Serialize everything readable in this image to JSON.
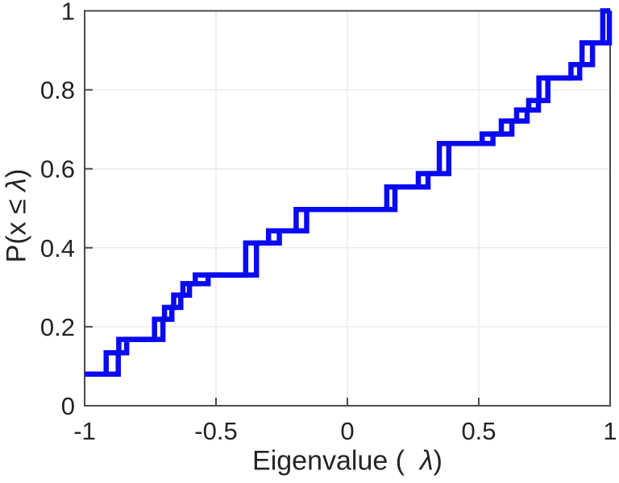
{
  "chart_data": {
    "type": "step",
    "description": "Empirical cumulative distribution of eigenvalues, two overlaid step curves",
    "xlabel": {
      "prefix": "Eigenvalue (  ",
      "symbol": "λ",
      "suffix": ")"
    },
    "ylabel": {
      "prefix": "P(x ≤ ",
      "symbol": "λ",
      "suffix": ")"
    },
    "xlim": [
      -1,
      1
    ],
    "ylim": [
      0,
      1
    ],
    "x_end": 1,
    "x_ticks": [
      {
        "value": -1,
        "label": "-1"
      },
      {
        "value": -0.5,
        "label": "-0.5"
      },
      {
        "value": 0,
        "label": "0"
      },
      {
        "value": 0.5,
        "label": "0.5"
      },
      {
        "value": 1,
        "label": "1"
      }
    ],
    "y_ticks": [
      {
        "value": 0,
        "label": "0"
      },
      {
        "value": 0.2,
        "label": "0.2"
      },
      {
        "value": 0.4,
        "label": "0.4"
      },
      {
        "value": 0.6,
        "label": "0.6"
      },
      {
        "value": 0.8,
        "label": "0.8"
      },
      {
        "value": 1,
        "label": "1"
      }
    ],
    "grid": true,
    "legend": "none",
    "line_color": "#0a0af0",
    "grid_color": "#ebebeb",
    "axis_color": "#4a4a4a",
    "text_color": "#242424",
    "line_width": 6.5,
    "series": [
      {
        "name": "ecdf-curve-1",
        "points": [
          [
            -1,
            0.08
          ],
          [
            -0.918,
            0.134
          ],
          [
            -0.87,
            0.168
          ],
          [
            -0.734,
            0.219
          ],
          [
            -0.696,
            0.249
          ],
          [
            -0.661,
            0.28
          ],
          [
            -0.626,
            0.309
          ],
          [
            -0.579,
            0.331
          ],
          [
            -0.387,
            0.412
          ],
          [
            -0.3,
            0.443
          ],
          [
            -0.195,
            0.497
          ],
          [
            0.15,
            0.554
          ],
          [
            0.27,
            0.588
          ],
          [
            0.35,
            0.664
          ],
          [
            0.513,
            0.688
          ],
          [
            0.586,
            0.721
          ],
          [
            0.644,
            0.749
          ],
          [
            0.69,
            0.773
          ],
          [
            0.729,
            0.83
          ],
          [
            0.851,
            0.864
          ],
          [
            0.893,
            0.919
          ],
          [
            0.972,
            1.0
          ]
        ]
      },
      {
        "name": "ecdf-curve-2",
        "points": [
          [
            -1,
            0.08
          ],
          [
            -0.872,
            0.134
          ],
          [
            -0.84,
            0.168
          ],
          [
            -0.702,
            0.219
          ],
          [
            -0.668,
            0.249
          ],
          [
            -0.634,
            0.28
          ],
          [
            -0.601,
            0.309
          ],
          [
            -0.53,
            0.331
          ],
          [
            -0.346,
            0.412
          ],
          [
            -0.259,
            0.443
          ],
          [
            -0.155,
            0.497
          ],
          [
            0.181,
            0.554
          ],
          [
            0.307,
            0.588
          ],
          [
            0.386,
            0.664
          ],
          [
            0.554,
            0.688
          ],
          [
            0.626,
            0.721
          ],
          [
            0.684,
            0.749
          ],
          [
            0.727,
            0.773
          ],
          [
            0.763,
            0.83
          ],
          [
            0.884,
            0.864
          ],
          [
            0.933,
            0.919
          ],
          [
            0.997,
            1.0
          ]
        ]
      }
    ]
  }
}
